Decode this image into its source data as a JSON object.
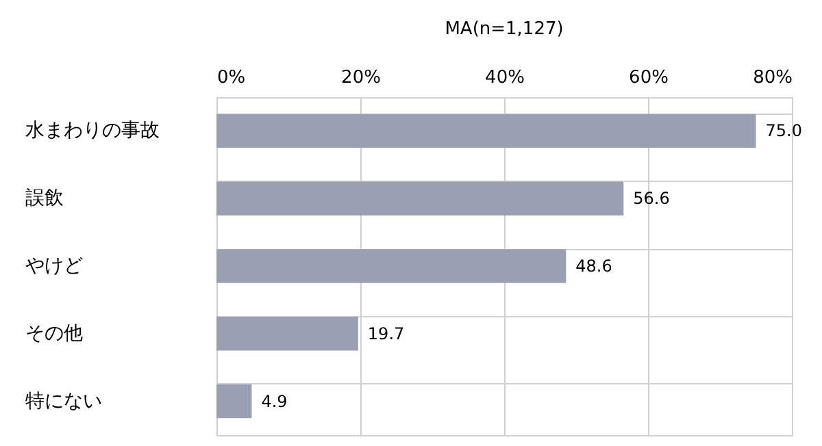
{
  "chart_data": {
    "type": "bar",
    "orientation": "horizontal",
    "title": "MA(n=1,127)",
    "categories": [
      "水まわりの事故",
      "誤飲",
      "やけど",
      "その他",
      "特にない"
    ],
    "values": [
      75.0,
      56.6,
      48.6,
      19.7,
      4.9
    ],
    "color": "#9aa0b2",
    "xlim": [
      0,
      80
    ],
    "xticks": [
      {
        "value": 0,
        "label": "0%"
      },
      {
        "value": 20,
        "label": "20%"
      },
      {
        "value": 40,
        "label": "40%"
      },
      {
        "value": 60,
        "label": "60%"
      },
      {
        "value": 80,
        "label": "80%"
      }
    ],
    "value_labels": [
      "75.0",
      "56.6",
      "48.6",
      "19.7",
      "4.9"
    ],
    "grid": true
  }
}
